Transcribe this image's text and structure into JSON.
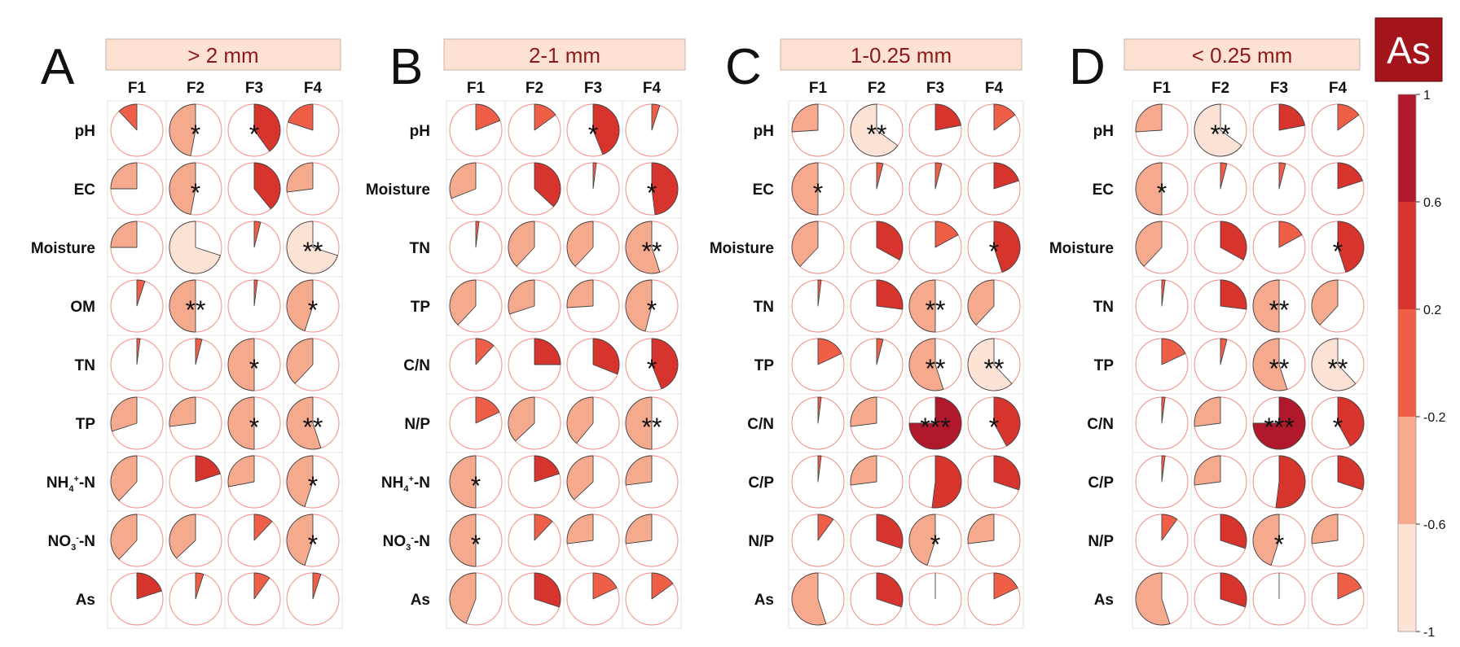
{
  "chart_data": {
    "type": "heatmap",
    "columns": [
      "F1",
      "F2",
      "F3",
      "F4"
    ],
    "cell_value_meaning": "correlation coefficient; pie fraction = |r|, fill color = r",
    "panels": [
      {
        "letter": "A",
        "title": "> 2 mm",
        "rows": [
          {
            "label": "pH",
            "values": [
              -0.12,
              -0.47,
              0.4,
              -0.2
            ],
            "sig": [
              "",
              "*",
              "*",
              ""
            ]
          },
          {
            "label": "EC",
            "values": [
              -0.25,
              -0.47,
              0.39,
              -0.27
            ],
            "sig": [
              "",
              "*",
              "",
              ""
            ]
          },
          {
            "label": "Moisture",
            "values": [
              -0.25,
              -0.7,
              0.04,
              -0.7
            ],
            "sig": [
              "",
              "",
              "",
              "**"
            ]
          },
          {
            "label": "OM",
            "values": [
              0.05,
              -0.5,
              0.02,
              -0.45
            ],
            "sig": [
              "",
              "**",
              "",
              "*"
            ]
          },
          {
            "label": "TN",
            "values": [
              0.02,
              0.04,
              -0.5,
              -0.38
            ],
            "sig": [
              "",
              "",
              "*",
              ""
            ]
          },
          {
            "label": "TP",
            "values": [
              -0.3,
              -0.27,
              -0.5,
              -0.55
            ],
            "sig": [
              "",
              "",
              "*",
              "**"
            ]
          },
          {
            "label": "NH4+-N",
            "values": [
              -0.38,
              0.2,
              -0.28,
              -0.45
            ],
            "sig": [
              "",
              "",
              "",
              "*"
            ]
          },
          {
            "label": "NO3--N",
            "values": [
              -0.38,
              -0.37,
              0.12,
              -0.45
            ],
            "sig": [
              "",
              "",
              "",
              "*"
            ]
          },
          {
            "label": "As",
            "values": [
              0.2,
              0.05,
              0.1,
              0.05
            ],
            "sig": [
              "",
              "",
              "",
              ""
            ]
          }
        ]
      },
      {
        "letter": "B",
        "title": "2-1 mm",
        "rows": [
          {
            "label": "pH",
            "values": [
              0.19,
              0.15,
              0.44,
              0.05
            ],
            "sig": [
              "",
              "",
              "*",
              ""
            ]
          },
          {
            "label": "Moisture",
            "values": [
              -0.31,
              0.37,
              0.02,
              0.48
            ],
            "sig": [
              "",
              "",
              "",
              "*"
            ]
          },
          {
            "label": "TN",
            "values": [
              0.02,
              -0.38,
              -0.38,
              -0.55
            ],
            "sig": [
              "",
              "",
              "",
              "**"
            ]
          },
          {
            "label": "TP",
            "values": [
              -0.38,
              -0.3,
              -0.26,
              -0.46
            ],
            "sig": [
              "",
              "",
              "",
              "*"
            ]
          },
          {
            "label": "C/N",
            "values": [
              0.12,
              0.25,
              0.31,
              0.44
            ],
            "sig": [
              "",
              "",
              "",
              "*"
            ]
          },
          {
            "label": "N/P",
            "values": [
              0.18,
              -0.37,
              -0.39,
              -0.5
            ],
            "sig": [
              "",
              "",
              "",
              "**"
            ]
          },
          {
            "label": "NH4+-N",
            "values": [
              -0.5,
              0.2,
              -0.37,
              -0.27
            ],
            "sig": [
              "*",
              "",
              "",
              ""
            ]
          },
          {
            "label": "NO3--N",
            "values": [
              -0.5,
              0.12,
              -0.27,
              -0.27
            ],
            "sig": [
              "*",
              "",
              "",
              ""
            ]
          },
          {
            "label": "As",
            "values": [
              -0.44,
              0.3,
              0.18,
              0.15
            ],
            "sig": [
              "",
              "",
              "",
              ""
            ]
          }
        ]
      },
      {
        "letter": "C",
        "title": "1-0.25 mm",
        "rows": [
          {
            "label": "pH",
            "values": [
              -0.26,
              -0.65,
              0.22,
              0.15
            ],
            "sig": [
              "",
              "**",
              "",
              ""
            ]
          },
          {
            "label": "EC",
            "values": [
              -0.5,
              0.04,
              0.04,
              0.2
            ],
            "sig": [
              "*",
              "",
              "",
              ""
            ]
          },
          {
            "label": "Moisture",
            "values": [
              -0.38,
              0.33,
              0.17,
              0.45
            ],
            "sig": [
              "",
              "",
              "",
              "*"
            ]
          },
          {
            "label": "TN",
            "values": [
              0.02,
              0.27,
              -0.5,
              -0.38
            ],
            "sig": [
              "",
              "",
              "**",
              ""
            ]
          },
          {
            "label": "TP",
            "values": [
              0.18,
              0.04,
              -0.55,
              -0.62
            ],
            "sig": [
              "",
              "",
              "**",
              "**"
            ]
          },
          {
            "label": "C/N",
            "values": [
              0.02,
              -0.27,
              0.75,
              0.42
            ],
            "sig": [
              "",
              "",
              "***",
              "*"
            ]
          },
          {
            "label": "C/P",
            "values": [
              0.02,
              -0.27,
              0.52,
              0.3
            ],
            "sig": [
              "",
              "",
              "",
              ""
            ]
          },
          {
            "label": "N/P",
            "values": [
              0.1,
              0.3,
              -0.45,
              -0.27
            ],
            "sig": [
              "",
              "",
              "*",
              ""
            ]
          },
          {
            "label": "As",
            "values": [
              -0.55,
              0.3,
              0.005,
              0.18
            ],
            "sig": [
              "",
              "",
              "",
              ""
            ]
          }
        ]
      },
      {
        "letter": "D",
        "title": "< 0.25 mm",
        "rows": [
          {
            "label": "pH",
            "values": [
              -0.26,
              -0.65,
              0.22,
              0.15
            ],
            "sig": [
              "",
              "**",
              "",
              ""
            ]
          },
          {
            "label": "EC",
            "values": [
              -0.5,
              0.04,
              0.04,
              0.2
            ],
            "sig": [
              "*",
              "",
              "",
              ""
            ]
          },
          {
            "label": "Moisture",
            "values": [
              -0.38,
              0.33,
              0.17,
              0.45
            ],
            "sig": [
              "",
              "",
              "",
              "*"
            ]
          },
          {
            "label": "TN",
            "values": [
              0.02,
              0.27,
              -0.5,
              -0.38
            ],
            "sig": [
              "",
              "",
              "**",
              ""
            ]
          },
          {
            "label": "TP",
            "values": [
              0.18,
              0.04,
              -0.55,
              -0.62
            ],
            "sig": [
              "",
              "",
              "**",
              "**"
            ]
          },
          {
            "label": "C/N",
            "values": [
              0.02,
              -0.27,
              0.75,
              0.42
            ],
            "sig": [
              "",
              "",
              "***",
              "*"
            ]
          },
          {
            "label": "C/P",
            "values": [
              0.02,
              -0.27,
              0.52,
              0.3
            ],
            "sig": [
              "",
              "",
              "",
              ""
            ]
          },
          {
            "label": "N/P",
            "values": [
              0.1,
              0.3,
              -0.45,
              -0.27
            ],
            "sig": [
              "",
              "",
              "*",
              ""
            ]
          },
          {
            "label": "As",
            "values": [
              -0.55,
              0.3,
              0.005,
              0.18
            ],
            "sig": [
              "",
              "",
              "",
              ""
            ]
          }
        ]
      }
    ],
    "colorbar": {
      "ticks": [
        1,
        0.6,
        0.2,
        -0.2,
        -0.6,
        -1
      ],
      "tick_labels": [
        "1",
        "0.6",
        "0.2",
        "-0.2",
        "-0.6",
        "-1"
      ],
      "range": [
        -1,
        1
      ],
      "bins": [
        {
          "from": 0.6,
          "to": 1,
          "color": "#b2182b"
        },
        {
          "from": 0.2,
          "to": 0.6,
          "color": "#d6342d"
        },
        {
          "from": -0.2,
          "to": 0.2,
          "color": "#ef5f48"
        },
        {
          "from": -0.6,
          "to": -0.2,
          "color": "#f5a98d"
        },
        {
          "from": -1,
          "to": -0.6,
          "color": "#fce3d6"
        }
      ]
    },
    "legend_badge": {
      "text": "As",
      "color": "#a3151b"
    },
    "colors": {
      "title_box_fill": "#fde1d3",
      "title_box_stroke": "#c8b1a8",
      "title_text": "#8b1a1a",
      "grid_line": "#e3e3e3",
      "circle_outline": "#f28a80"
    }
  }
}
